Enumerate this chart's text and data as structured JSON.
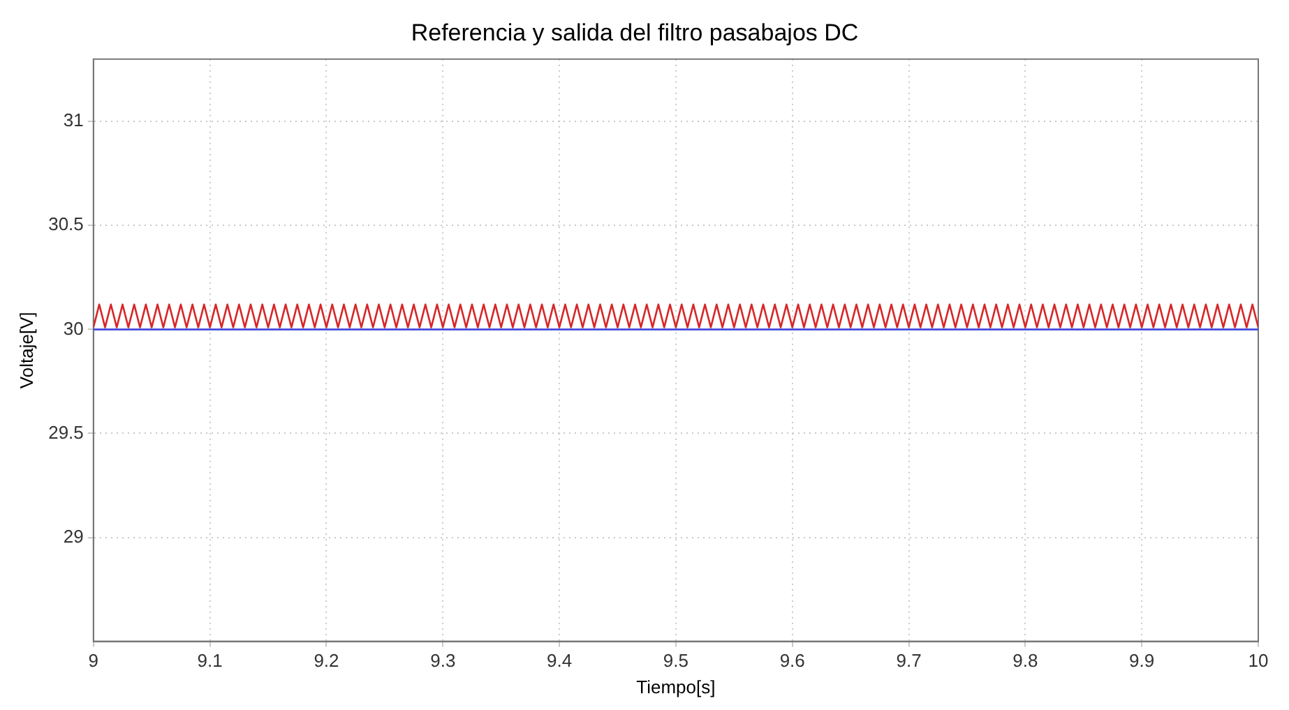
{
  "chart_data": {
    "type": "line",
    "title": "Referencia y salida del filtro pasabajos DC",
    "xlabel": "Tiempo[s]",
    "ylabel": "Voltaje[V]",
    "xlim": [
      9,
      10
    ],
    "xticks": [
      9,
      9.1,
      9.2,
      9.3,
      9.4,
      9.5,
      9.6,
      9.7,
      9.8,
      9.9,
      10
    ],
    "ylim": [
      28.5,
      31.3
    ],
    "yticks": [
      29,
      29.5,
      30,
      30.5,
      31
    ],
    "grid": true,
    "legend": false,
    "marker": "none",
    "line_style": "solid",
    "series": [
      {
        "color": "#d62728",
        "x": [
          9,
          9.005,
          9.01,
          9.015,
          9.02,
          9.025,
          9.03,
          9.035,
          9.04,
          9.045,
          9.05,
          9.055,
          9.06,
          9.065,
          9.07,
          9.075,
          9.08,
          9.085,
          9.09,
          9.095,
          9.1,
          9.105,
          9.11,
          9.115,
          9.12,
          9.125,
          9.13,
          9.135,
          9.14,
          9.145,
          9.15,
          9.155,
          9.16,
          9.165,
          9.17,
          9.175,
          9.18,
          9.185,
          9.19,
          9.195,
          9.2,
          9.205,
          9.21,
          9.215,
          9.22,
          9.225,
          9.23,
          9.235,
          9.24,
          9.245,
          9.25,
          9.255,
          9.26,
          9.265,
          9.27,
          9.275,
          9.28,
          9.285,
          9.29,
          9.295,
          9.3,
          9.305,
          9.31,
          9.315,
          9.32,
          9.325,
          9.33,
          9.335,
          9.34,
          9.345,
          9.35,
          9.355,
          9.36,
          9.365,
          9.37,
          9.375,
          9.38,
          9.385,
          9.39,
          9.395,
          9.4,
          9.405,
          9.41,
          9.415,
          9.42,
          9.425,
          9.43,
          9.435,
          9.44,
          9.445,
          9.45,
          9.455,
          9.46,
          9.465,
          9.47,
          9.475,
          9.48,
          9.485,
          9.49,
          9.495,
          9.5,
          9.505,
          9.51,
          9.515,
          9.52,
          9.525,
          9.53,
          9.535,
          9.54,
          9.545,
          9.55,
          9.555,
          9.56,
          9.565,
          9.57,
          9.575,
          9.58,
          9.585,
          9.59,
          9.595,
          9.6,
          9.605,
          9.61,
          9.615,
          9.62,
          9.625,
          9.63,
          9.635,
          9.64,
          9.645,
          9.65,
          9.655,
          9.66,
          9.665,
          9.67,
          9.675,
          9.68,
          9.685,
          9.69,
          9.695,
          9.7,
          9.705,
          9.71,
          9.715,
          9.72,
          9.725,
          9.73,
          9.735,
          9.74,
          9.745,
          9.75,
          9.755,
          9.76,
          9.765,
          9.77,
          9.775,
          9.78,
          9.785,
          9.79,
          9.795,
          9.8,
          9.805,
          9.81,
          9.815,
          9.82,
          9.825,
          9.83,
          9.835,
          9.84,
          9.845,
          9.85,
          9.855,
          9.86,
          9.865,
          9.87,
          9.875,
          9.88,
          9.885,
          9.89,
          9.895,
          9.9,
          9.905,
          9.91,
          9.915,
          9.92,
          9.925,
          9.93,
          9.935,
          9.94,
          9.945,
          9.95,
          9.955,
          9.96,
          9.965,
          9.97,
          9.975,
          9.98,
          9.985,
          9.99,
          9.995,
          10
        ],
        "values": [
          30.01,
          30.12,
          30.01,
          30.12,
          30.01,
          30.12,
          30.01,
          30.12,
          30.01,
          30.12,
          30.01,
          30.12,
          30.01,
          30.12,
          30.01,
          30.12,
          30.01,
          30.12,
          30.01,
          30.12,
          30.01,
          30.12,
          30.01,
          30.12,
          30.01,
          30.12,
          30.01,
          30.12,
          30.01,
          30.12,
          30.01,
          30.12,
          30.01,
          30.12,
          30.01,
          30.12,
          30.01,
          30.12,
          30.01,
          30.12,
          30.01,
          30.12,
          30.01,
          30.12,
          30.01,
          30.12,
          30.01,
          30.12,
          30.01,
          30.12,
          30.01,
          30.12,
          30.01,
          30.12,
          30.01,
          30.12,
          30.01,
          30.12,
          30.01,
          30.12,
          30.01,
          30.12,
          30.01,
          30.12,
          30.01,
          30.12,
          30.01,
          30.12,
          30.01,
          30.12,
          30.01,
          30.12,
          30.01,
          30.12,
          30.01,
          30.12,
          30.01,
          30.12,
          30.01,
          30.12,
          30.01,
          30.12,
          30.01,
          30.12,
          30.01,
          30.12,
          30.01,
          30.12,
          30.01,
          30.12,
          30.01,
          30.12,
          30.01,
          30.12,
          30.01,
          30.12,
          30.01,
          30.12,
          30.01,
          30.12,
          30.01,
          30.12,
          30.01,
          30.12,
          30.01,
          30.12,
          30.01,
          30.12,
          30.01,
          30.12,
          30.01,
          30.12,
          30.01,
          30.12,
          30.01,
          30.12,
          30.01,
          30.12,
          30.01,
          30.12,
          30.01,
          30.12,
          30.01,
          30.12,
          30.01,
          30.12,
          30.01,
          30.12,
          30.01,
          30.12,
          30.01,
          30.12,
          30.01,
          30.12,
          30.01,
          30.12,
          30.01,
          30.12,
          30.01,
          30.12,
          30.01,
          30.12,
          30.01,
          30.12,
          30.01,
          30.12,
          30.01,
          30.12,
          30.01,
          30.12,
          30.01,
          30.12,
          30.01,
          30.12,
          30.01,
          30.12,
          30.01,
          30.12,
          30.01,
          30.12,
          30.01,
          30.12,
          30.01,
          30.12,
          30.01,
          30.12,
          30.01,
          30.12,
          30.01,
          30.12,
          30.01,
          30.12,
          30.01,
          30.12,
          30.01,
          30.12,
          30.01,
          30.12,
          30.01,
          30.12,
          30.01,
          30.12,
          30.01,
          30.12,
          30.01,
          30.12,
          30.01,
          30.12,
          30.01,
          30.12,
          30.01,
          30.12,
          30.01,
          30.12,
          30.01,
          30.12,
          30.01,
          30.12,
          30.01,
          30.12,
          30.01
        ]
      },
      {
        "color": "#3f48e0",
        "x": [
          9,
          10
        ],
        "values": [
          30,
          30
        ]
      }
    ]
  }
}
